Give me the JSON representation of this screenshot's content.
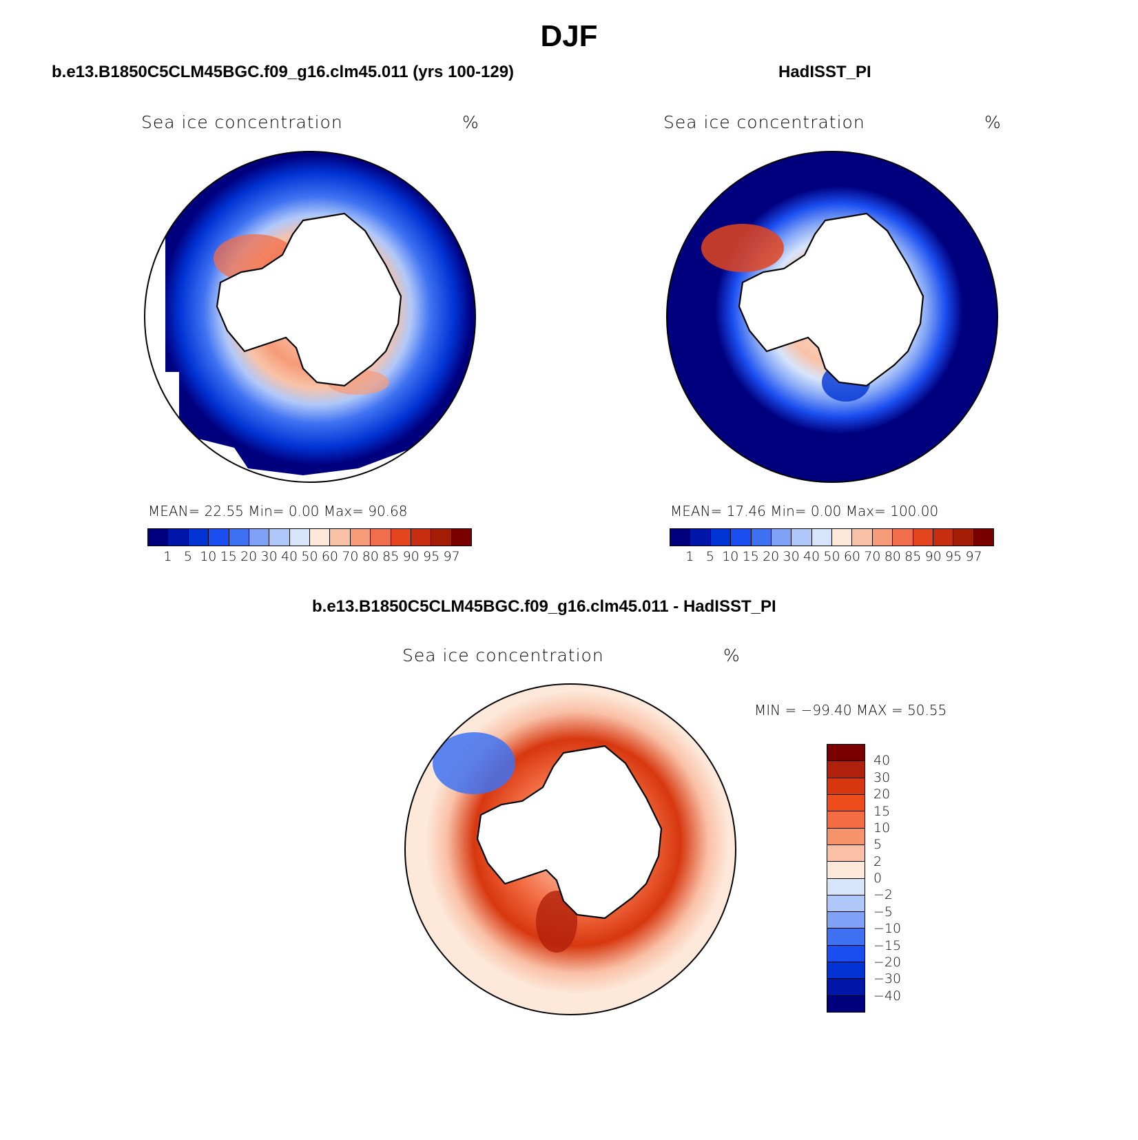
{
  "figure": {
    "title": "DJF"
  },
  "panels": {
    "model": {
      "title": "b.e13.B1850C5CLM45BGC.f09_g16.clm45.011 (yrs 100-129)",
      "variable": "Sea ice concentration",
      "units": "%",
      "stats": "MEAN=   22.55   Min=     0.00   Max=   90.68"
    },
    "obs": {
      "title": "HadISST_PI",
      "variable": "Sea ice concentration",
      "units": "%",
      "stats": "MEAN=   17.46   Min=     0.00   Max=  100.00"
    },
    "diff": {
      "title": "b.e13.B1850C5CLM45BGC.f09_g16.clm45.011 - HadISST_PI",
      "variable": "Sea ice concentration",
      "units": "%",
      "stats": "MIN = −99.40  MAX =    50.55"
    }
  },
  "colorbars": {
    "abs": {
      "levels": [
        "1",
        "5",
        "10",
        "15",
        "20",
        "30",
        "40",
        "50",
        "60",
        "70",
        "80",
        "85",
        "90",
        "95",
        "97"
      ],
      "colors": [
        "#00007f",
        "#0016a8",
        "#0033d4",
        "#1a4ef0",
        "#3f72f2",
        "#7fa2f6",
        "#b0c8f9",
        "#d7e5fb",
        "#fde8da",
        "#f9c2a7",
        "#f69b77",
        "#f06e4b",
        "#e3451f",
        "#c72e0f",
        "#a31d07",
        "#7a0000"
      ]
    },
    "diff": {
      "levels": [
        "40",
        "30",
        "20",
        "15",
        "10",
        "5",
        "2",
        "0",
        "−2",
        "−5",
        "−10",
        "−15",
        "−20",
        "−30",
        "−40"
      ],
      "colors": [
        "#7a0000",
        "#b1200a",
        "#d7370f",
        "#ef4c1b",
        "#f36c42",
        "#f5936b",
        "#f9c0a6",
        "#fde8da",
        "#d7e5fb",
        "#b0c8f9",
        "#7fa2f6",
        "#3f72f2",
        "#1a4ef0",
        "#0033d4",
        "#0016a8",
        "#00007f"
      ]
    }
  },
  "map": {
    "projection": "south-polar-stereographic",
    "land_color": "#ffffff",
    "coastline_color": "#000000"
  }
}
